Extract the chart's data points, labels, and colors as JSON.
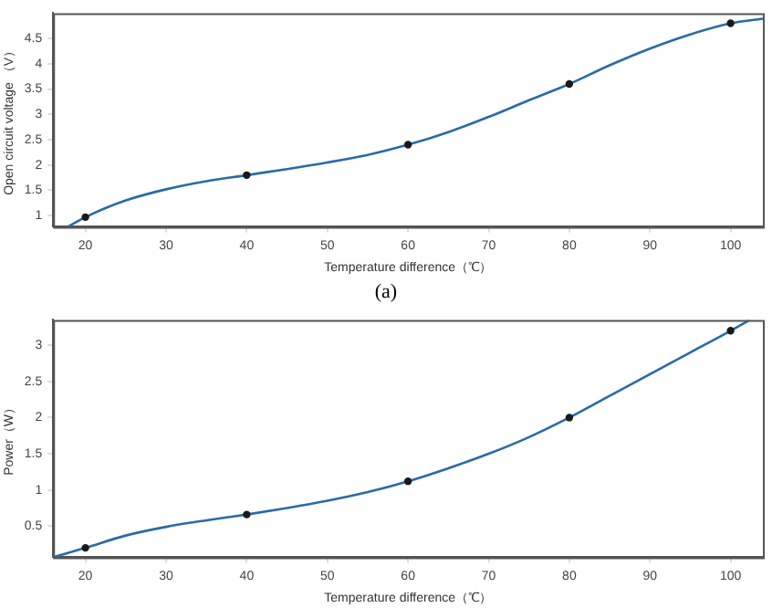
{
  "chart_data": [
    {
      "type": "line",
      "xlabel": "Temperature difference（℃）",
      "ylabel": "Open circuit voltage （V）",
      "xlim": [
        16,
        104
      ],
      "xticks": [
        20,
        30,
        40,
        50,
        60,
        70,
        80,
        90,
        100
      ],
      "ylim": [
        0.78,
        5
      ],
      "yticks": [
        1,
        1.5,
        2,
        2.5,
        3,
        3.5,
        4,
        4.5
      ],
      "grid": false,
      "legend": false,
      "annotations": [
        "(a)"
      ],
      "series": [
        {
          "type": "line",
          "color": "#2a6aa8",
          "marker": "none",
          "x": [
            17.8,
            20,
            25,
            30,
            35,
            40,
            45,
            50,
            55,
            60,
            65,
            70,
            75,
            80,
            85,
            90,
            95,
            100,
            104
          ],
          "values": [
            0.78,
            0.97,
            1.3,
            1.52,
            1.68,
            1.8,
            1.92,
            2.05,
            2.2,
            2.4,
            2.65,
            2.95,
            3.28,
            3.6,
            3.97,
            4.3,
            4.58,
            4.8,
            4.89
          ]
        },
        {
          "type": "scatter",
          "color": "#1a1a1a",
          "marker": "circle",
          "x": [
            20,
            40,
            60,
            80,
            100
          ],
          "values": [
            0.97,
            1.8,
            2.4,
            3.6,
            4.8
          ]
        }
      ]
    },
    {
      "type": "line",
      "xlabel": "Temperature difference（℃）",
      "ylabel": "Power（W）",
      "xlim": [
        16,
        104
      ],
      "xticks": [
        20,
        30,
        40,
        50,
        60,
        70,
        80,
        90,
        100
      ],
      "ylim": [
        0.07,
        3.35
      ],
      "yticks": [
        0.5,
        1,
        1.5,
        2,
        2.5,
        3
      ],
      "grid": false,
      "legend": false,
      "series": [
        {
          "type": "line",
          "color": "#2a6aa8",
          "marker": "none",
          "x": [
            16,
            20,
            25,
            30,
            35,
            40,
            45,
            50,
            55,
            60,
            65,
            70,
            75,
            80,
            85,
            90,
            95,
            100,
            102.4
          ],
          "values": [
            0.07,
            0.2,
            0.37,
            0.49,
            0.58,
            0.66,
            0.75,
            0.85,
            0.97,
            1.12,
            1.3,
            1.5,
            1.73,
            2.0,
            2.3,
            2.6,
            2.9,
            3.2,
            3.35
          ]
        },
        {
          "type": "scatter",
          "color": "#1a1a1a",
          "marker": "circle",
          "x": [
            20,
            40,
            60,
            80,
            100
          ],
          "values": [
            0.2,
            0.66,
            1.12,
            2.0,
            3.2
          ]
        }
      ]
    }
  ]
}
